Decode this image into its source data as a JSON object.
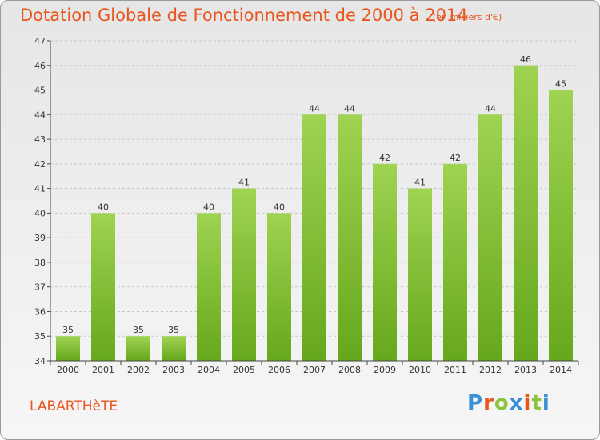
{
  "title": "Dotation Globale de Fonctionnement de 2000 à 2014",
  "subtitle": "(en milliers d'€)",
  "commune": "LABARTHèTE",
  "logo": "Proxiti",
  "colors": {
    "bar": "#7cbf35",
    "bar_light": "#a7d65f",
    "accent": "#e8561e"
  },
  "chart_data": {
    "type": "bar",
    "categories": [
      "2000",
      "2001",
      "2002",
      "2003",
      "2004",
      "2005",
      "2006",
      "2007",
      "2008",
      "2009",
      "2010",
      "2011",
      "2012",
      "2013",
      "2014"
    ],
    "values": [
      35,
      40,
      35,
      35,
      40,
      41,
      40,
      44,
      44,
      42,
      41,
      42,
      44,
      46,
      45
    ],
    "title": "Dotation Globale de Fonctionnement de 2000 à 2014",
    "xlabel": "",
    "ylabel": "",
    "ylim": [
      34,
      47
    ],
    "yticks": [
      34,
      35,
      36,
      37,
      38,
      39,
      40,
      41,
      42,
      43,
      44,
      45,
      46,
      47
    ],
    "grid": true,
    "data_labels": true
  }
}
